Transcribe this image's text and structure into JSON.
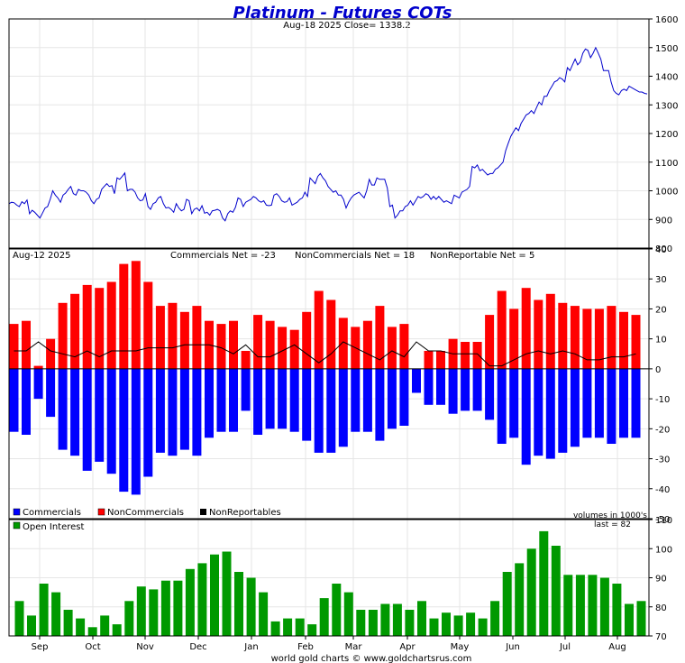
{
  "header": {
    "title": "Platinum - Futures COTs",
    "subtitle": "Aug-18  2025   Close= 1338.2"
  },
  "footer": {
    "credit": "world gold charts © www.goldchartsrus.com"
  },
  "months": [
    "Sep",
    "Oct",
    "Nov",
    "Dec",
    "Jan",
    "Feb",
    "Mar",
    "Apr",
    "May",
    "Jun",
    "Jul",
    "Aug"
  ],
  "colors": {
    "price": "#0000cc",
    "commercials": "#0000ff",
    "noncommercials": "#ff0000",
    "nonreportables": "#000000",
    "open_interest": "#009900",
    "grid": "#e6e6e6",
    "title": "#0000cc"
  },
  "chart_data": [
    {
      "type": "line",
      "panel": "price",
      "ylim": [
        800,
        1600
      ],
      "yticks": [
        800,
        900,
        1000,
        1100,
        1200,
        1300,
        1400,
        1500,
        1600
      ],
      "grid": true,
      "series": [
        {
          "values": [
            955,
            960,
            958,
            950,
            945,
            962,
            955,
            968,
            920,
            932,
            925,
            915,
            905,
            922,
            940,
            945,
            970,
            1000,
            985,
            975,
            960,
            985,
            992,
            1005,
            1015,
            990,
            985,
            1005,
            1000,
            1000,
            995,
            985,
            965,
            955,
            970,
            975,
            1005,
            1015,
            1025,
            1015,
            1018,
            990,
            1045,
            1040,
            1050,
            1062,
            1000,
            1005,
            1005,
            995,
            975,
            965,
            968,
            990,
            945,
            935,
            955,
            960,
            975,
            980,
            955,
            940,
            942,
            935,
            925,
            955,
            940,
            930,
            935,
            970,
            965,
            920,
            935,
            940,
            930,
            948,
            922,
            925,
            915,
            930,
            932,
            935,
            930,
            905,
            895,
            920,
            930,
            925,
            942,
            975,
            970,
            945,
            960,
            965,
            970,
            980,
            975,
            965,
            960,
            965,
            950,
            948,
            950,
            985,
            990,
            980,
            965,
            960,
            962,
            975,
            950,
            955,
            960,
            970,
            975,
            995,
            980,
            1045,
            1035,
            1025,
            1050,
            1060,
            1045,
            1035,
            1015,
            1005,
            995,
            1000,
            985,
            985,
            970,
            940,
            960,
            975,
            985,
            990,
            995,
            985,
            975,
            1000,
            1040,
            1020,
            1020,
            1045,
            1040,
            1040,
            1040,
            1010,
            945,
            950,
            905,
            915,
            930,
            930,
            945,
            950,
            965,
            950,
            965,
            980,
            975,
            980,
            990,
            985,
            970,
            980,
            970,
            980,
            970,
            960,
            965,
            960,
            955,
            985,
            980,
            975,
            995,
            1000,
            1005,
            1015,
            1085,
            1080,
            1090,
            1070,
            1075,
            1065,
            1055,
            1060,
            1060,
            1075,
            1080,
            1090,
            1100,
            1140,
            1165,
            1190,
            1205,
            1220,
            1210,
            1235,
            1250,
            1265,
            1270,
            1280,
            1270,
            1290,
            1310,
            1300,
            1330,
            1330,
            1350,
            1365,
            1380,
            1385,
            1395,
            1390,
            1380,
            1430,
            1420,
            1440,
            1460,
            1440,
            1450,
            1480,
            1495,
            1490,
            1465,
            1480,
            1500,
            1480,
            1460,
            1420,
            1420,
            1420,
            1380,
            1350,
            1340,
            1335,
            1350,
            1355,
            1350,
            1365,
            1360,
            1355,
            1350,
            1345,
            1345,
            1340,
            1338.2
          ]
        }
      ]
    },
    {
      "type": "bar",
      "panel": "net-positions",
      "title": "Aug-12  2025",
      "annotations": [
        "Commercials Net = -23",
        "NonCommercials Net = 18",
        "NonReportable Net = 5"
      ],
      "unit_note": "volumes in 1000's",
      "ylim": [
        -50,
        40
      ],
      "yticks": [
        -50,
        -40,
        -30,
        -20,
        -10,
        0,
        10,
        20,
        30,
        40
      ],
      "grid": true,
      "legend": {
        "placement": "bottom-left",
        "entries": [
          "Commercials",
          "NonCommercials",
          "NonReportables"
        ]
      },
      "series": [
        {
          "name": "Commercials",
          "values": [
            -21,
            -22,
            -10,
            -16,
            -27,
            -29,
            -34,
            -31,
            -35,
            -41,
            -42,
            -36,
            -28,
            -29,
            -27,
            -29,
            -23,
            -21,
            -21,
            -14,
            -22,
            -20,
            -20,
            -21,
            -24,
            -28,
            -28,
            -26,
            -21,
            -21,
            -24,
            -20,
            -19,
            -8,
            -12,
            -12,
            -15,
            -14,
            -14,
            -17,
            -25,
            -23,
            -32,
            -29,
            -30,
            -28,
            -26,
            -23,
            -23,
            -25,
            -23,
            -23
          ]
        },
        {
          "name": "NonCommercials",
          "values": [
            15,
            16,
            1,
            10,
            22,
            25,
            28,
            27,
            29,
            35,
            36,
            29,
            21,
            22,
            19,
            21,
            16,
            15,
            16,
            6,
            18,
            16,
            14,
            13,
            19,
            26,
            23,
            17,
            14,
            16,
            21,
            14,
            15,
            0,
            6,
            6,
            10,
            9,
            9,
            18,
            26,
            20,
            27,
            23,
            25,
            22,
            21,
            20,
            20,
            21,
            19,
            18
          ]
        },
        {
          "name": "NonReportables",
          "values": [
            6,
            6,
            9,
            6,
            5,
            4,
            6,
            4,
            6,
            6,
            6,
            7,
            7,
            7,
            8,
            8,
            8,
            7,
            5,
            8,
            4,
            4,
            6,
            8,
            5,
            2,
            5,
            9,
            7,
            5,
            3,
            6,
            4,
            9,
            6,
            6,
            5,
            5,
            5,
            1,
            1,
            3,
            5,
            6,
            5,
            6,
            5,
            3,
            3,
            4,
            4,
            5
          ]
        }
      ]
    },
    {
      "type": "bar",
      "panel": "open-interest",
      "legend": {
        "placement": "top-left",
        "entries": [
          "Open Interest"
        ]
      },
      "annotation": "last = 82",
      "ylim": [
        70,
        110
      ],
      "yticks": [
        70,
        80,
        90,
        100,
        110
      ],
      "grid": true,
      "series": [
        {
          "name": "Open Interest",
          "values": [
            82,
            77,
            88,
            85,
            79,
            76,
            73,
            77,
            74,
            82,
            87,
            86,
            89,
            89,
            93,
            95,
            98,
            99,
            92,
            90,
            85,
            75,
            76,
            76,
            74,
            83,
            88,
            85,
            79,
            79,
            81,
            81,
            79,
            82,
            76,
            78,
            77,
            78,
            76,
            82,
            92,
            95,
            100,
            106,
            101,
            91,
            91,
            91,
            90,
            88,
            81,
            82
          ]
        }
      ]
    }
  ]
}
